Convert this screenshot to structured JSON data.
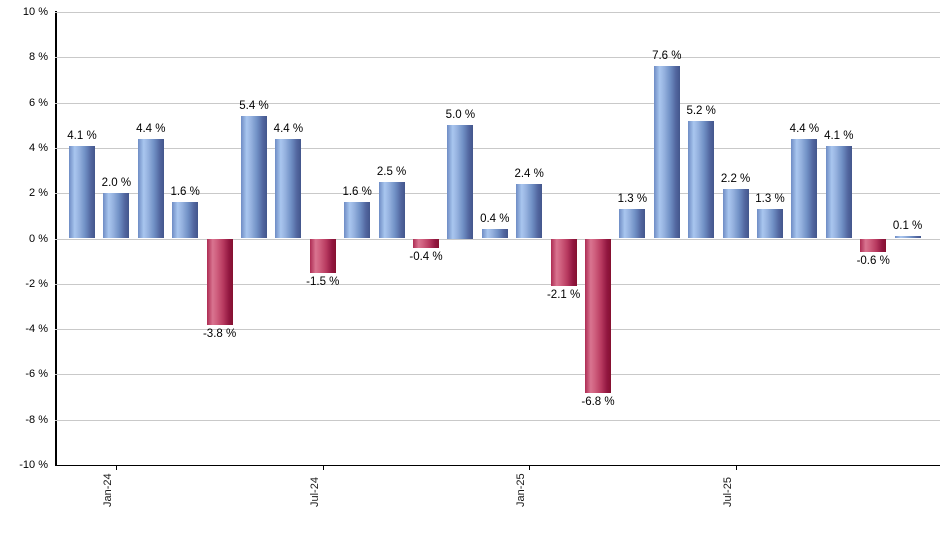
{
  "chart_data": {
    "type": "bar",
    "title": "",
    "xlabel": "",
    "ylabel": "",
    "legend": false,
    "grid": true,
    "y_axis": {
      "min": -10,
      "max": 10,
      "step": 2,
      "unit": "%",
      "tick_labels": [
        "10 %",
        "8 %",
        "6 %",
        "4 %",
        "2 %",
        "0 %",
        "-2 %",
        "-4 %",
        "-6 %",
        "-8 %",
        "-10 %"
      ]
    },
    "x_axis": {
      "tick_labels": [
        "Jan-24",
        "Jul-24",
        "Jan-25",
        "Jul-25"
      ],
      "tick_bar_indices": [
        1,
        7,
        13,
        19
      ]
    },
    "bars": [
      {
        "value": 4.1,
        "label": "4.1 %"
      },
      {
        "value": 2.0,
        "label": "2.0 %"
      },
      {
        "value": 4.4,
        "label": "4.4 %"
      },
      {
        "value": 1.6,
        "label": "1.6 %"
      },
      {
        "value": -3.8,
        "label": "-3.8 %"
      },
      {
        "value": 5.4,
        "label": "5.4 %"
      },
      {
        "value": 4.4,
        "label": "4.4 %"
      },
      {
        "value": -1.5,
        "label": "-1.5 %"
      },
      {
        "value": 1.6,
        "label": "1.6 %"
      },
      {
        "value": 2.5,
        "label": "2.5 %"
      },
      {
        "value": -0.4,
        "label": "-0.4 %"
      },
      {
        "value": 5.0,
        "label": "5.0 %"
      },
      {
        "value": 0.4,
        "label": "0.4 %"
      },
      {
        "value": 2.4,
        "label": "2.4 %"
      },
      {
        "value": -2.1,
        "label": "-2.1 %"
      },
      {
        "value": -6.8,
        "label": "-6.8 %"
      },
      {
        "value": 1.3,
        "label": "1.3 %"
      },
      {
        "value": 7.6,
        "label": "7.6 %"
      },
      {
        "value": 5.2,
        "label": "5.2 %"
      },
      {
        "value": 2.2,
        "label": "2.2 %"
      },
      {
        "value": 1.3,
        "label": "1.3 %"
      },
      {
        "value": 4.4,
        "label": "4.4 %"
      },
      {
        "value": 4.1,
        "label": "4.1 %"
      },
      {
        "value": -0.6,
        "label": "-0.6 %"
      },
      {
        "value": 0.1,
        "label": "0.1 %"
      }
    ],
    "colors": {
      "positive_bar_light": "#a9c6ef",
      "positive_bar_mid": "#7090c5",
      "positive_bar_dark": "#43568c",
      "negative_bar_light": "#d97490",
      "negative_bar_mid": "#b83a60",
      "negative_bar_dark": "#85102f",
      "gridline": "#c9c9c9",
      "axis": "#000000",
      "text": "#000000",
      "background": "#ffffff"
    }
  }
}
